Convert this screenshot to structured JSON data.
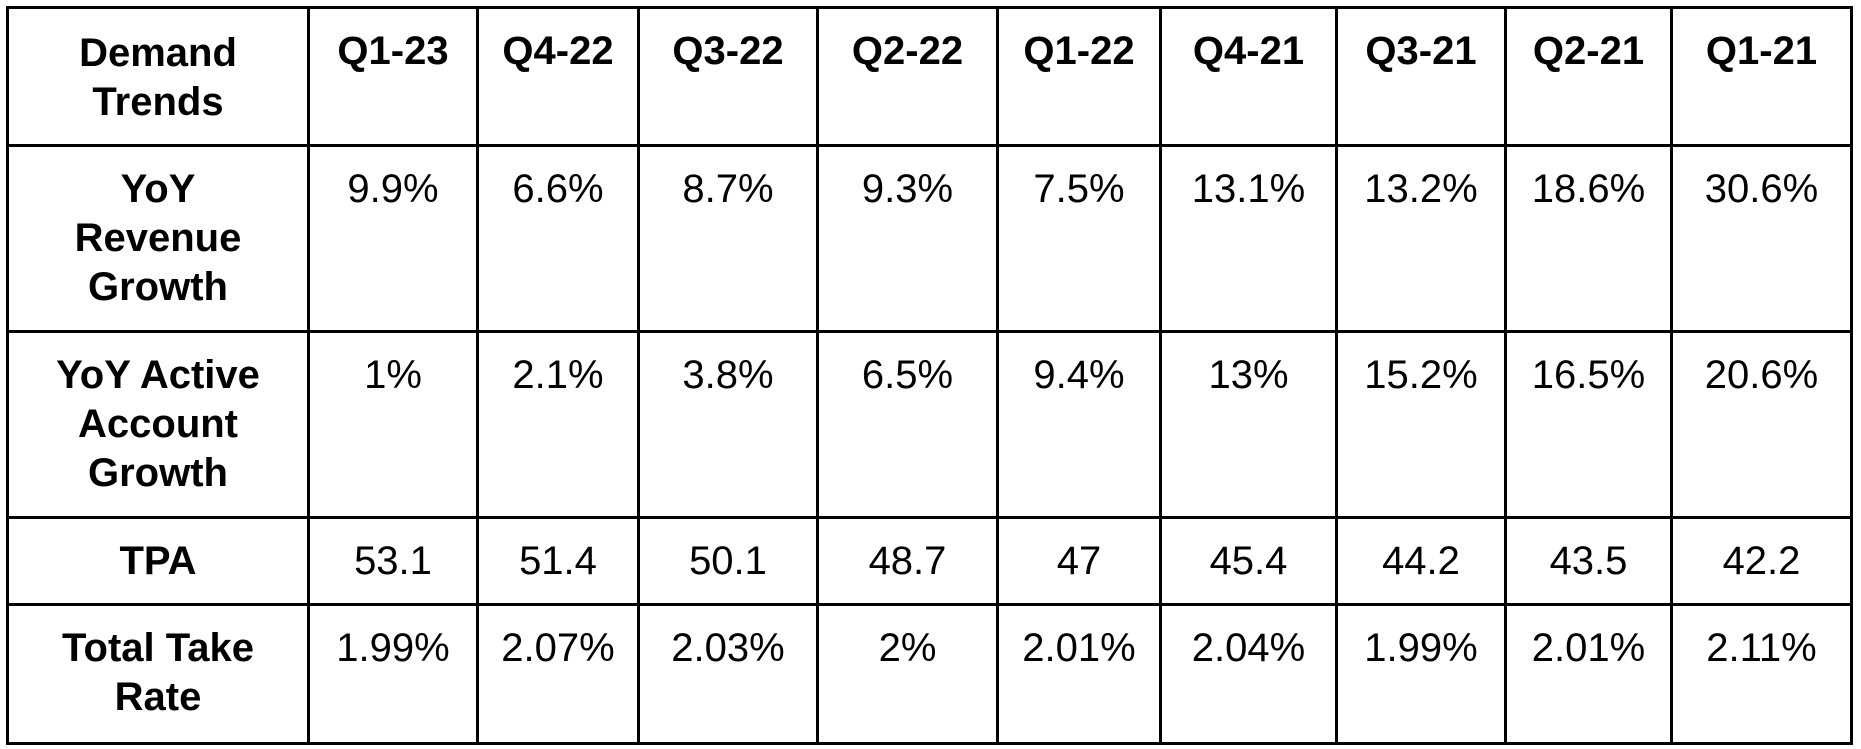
{
  "table": {
    "corner_header": "Demand Trends",
    "columns": [
      "Q1-23",
      "Q4-22",
      "Q3-22",
      "Q2-22",
      "Q1-22",
      "Q4-21",
      "Q3-21",
      "Q2-21",
      "Q1-21"
    ],
    "rows": [
      {
        "label": "YoY Revenue Growth",
        "values": [
          "9.9%",
          "6.6%",
          "8.7%",
          "9.3%",
          "7.5%",
          "13.1%",
          "13.2%",
          "18.6%",
          "30.6%"
        ]
      },
      {
        "label": "YoY Active Account Growth",
        "values": [
          "1%",
          "2.1%",
          "3.8%",
          "6.5%",
          "9.4%",
          "13%",
          "15.2%",
          "16.5%",
          "20.6%"
        ]
      },
      {
        "label": "TPA",
        "values": [
          "53.1",
          "51.4",
          "50.1",
          "48.7",
          "47",
          "45.4",
          "44.2",
          "43.5",
          "42.2"
        ]
      },
      {
        "label": "Total Take Rate",
        "values": [
          "1.99%",
          "2.07%",
          "2.03%",
          "2%",
          "2.01%",
          "2.04%",
          "1.99%",
          "2.01%",
          "2.11%"
        ]
      }
    ]
  }
}
